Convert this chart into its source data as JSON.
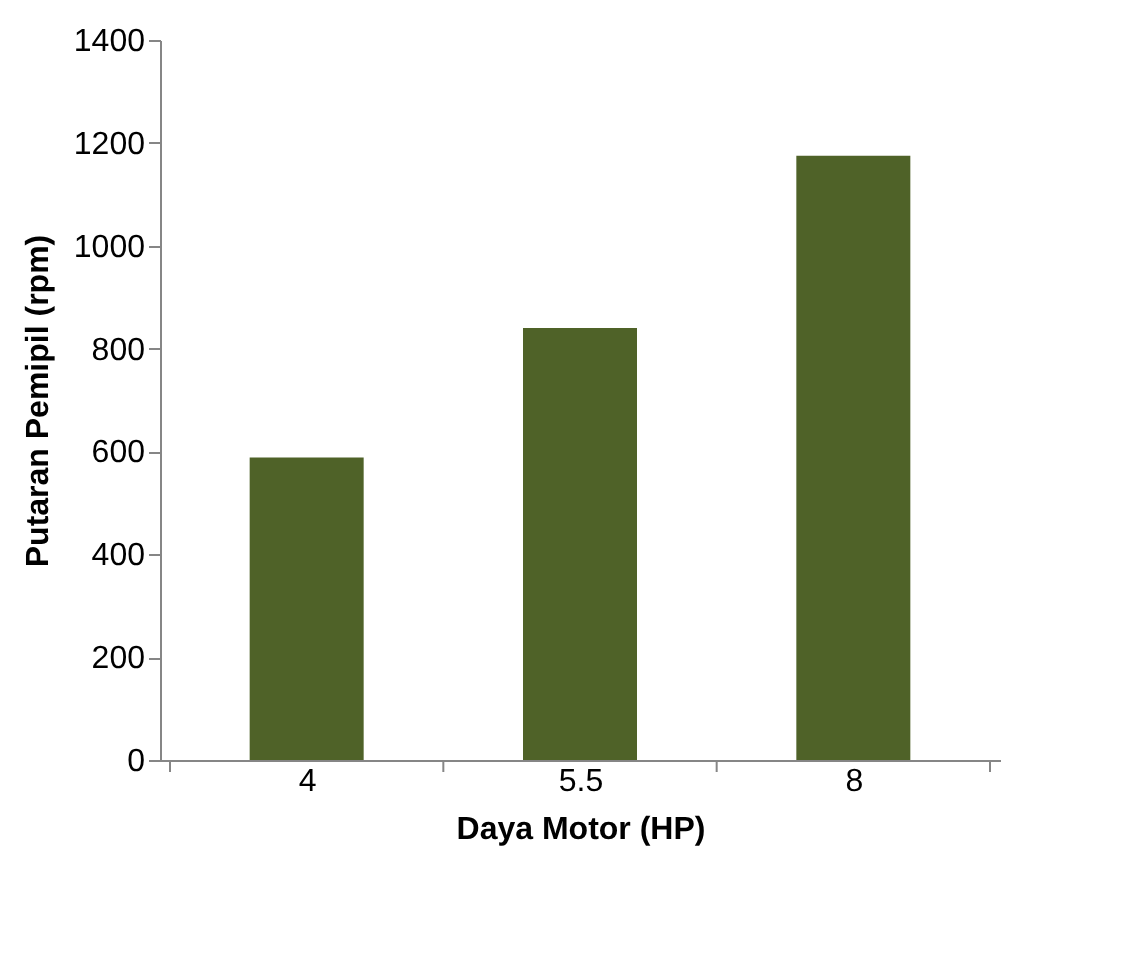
{
  "chart_data": {
    "type": "bar",
    "xlabel": "Daya Motor (HP)",
    "ylabel": "Putaran  Pemipil (rpm)",
    "categories": [
      "4",
      "5.5",
      "8"
    ],
    "values": [
      588,
      840,
      1175
    ],
    "color": "#4f6228",
    "ylim": [
      0,
      1400
    ],
    "yticks": [
      0,
      200,
      400,
      600,
      800,
      1000,
      1200,
      1400
    ],
    "grid": false
  }
}
